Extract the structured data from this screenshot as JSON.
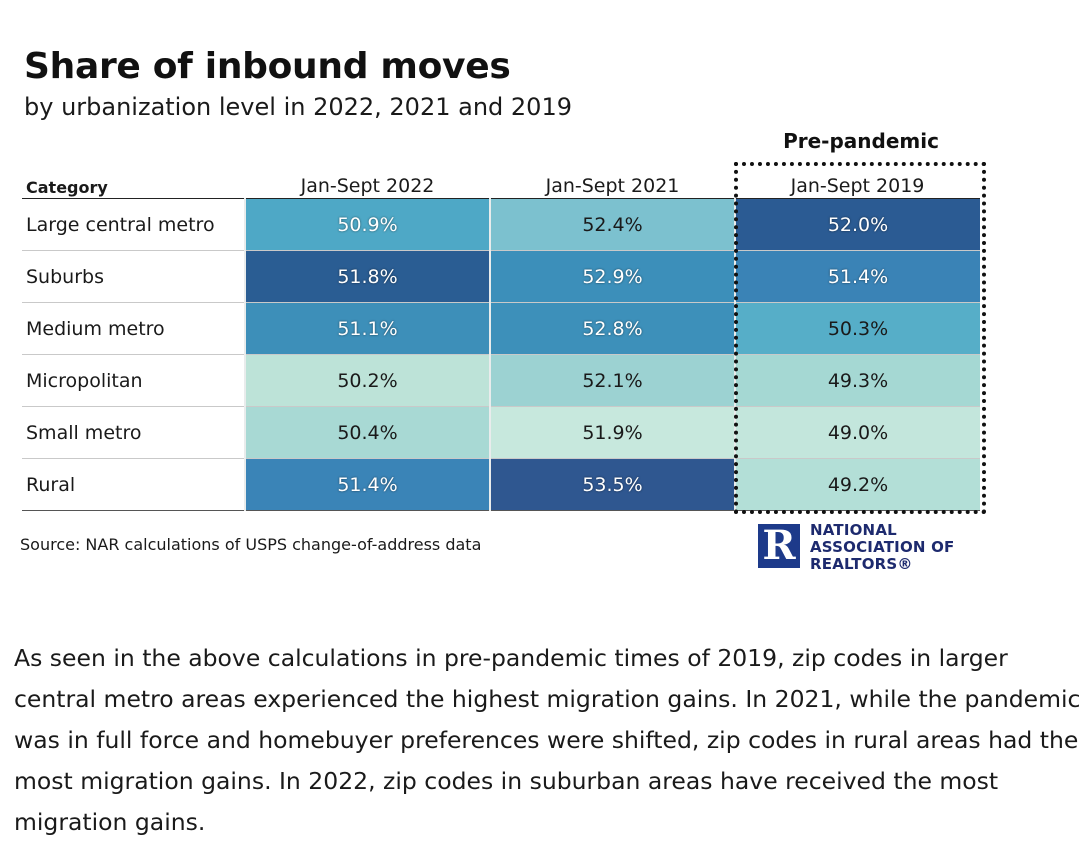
{
  "header": {
    "title": "Share of inbound moves",
    "subtitle": "by urbanization level in 2022, 2021 and 2019",
    "pre_pandemic_label": "Pre-pandemic"
  },
  "chart_data": {
    "type": "heatmap",
    "title": "Share of inbound moves",
    "subtitle": "by urbanization level in 2022, 2021 and 2019",
    "row_header": "Category",
    "columns": [
      "Jan-Sept 2022",
      "Jan-Sept 2021",
      "Jan-Sept 2019"
    ],
    "rows": [
      {
        "category": "Large central metro",
        "values": [
          "50.9%",
          "52.4%",
          "52.0%"
        ],
        "colors": [
          "#4ea8c6",
          "#7cc1cf",
          "#2b5b93"
        ]
      },
      {
        "category": "Suburbs",
        "values": [
          "51.8%",
          "52.9%",
          "51.4%"
        ],
        "colors": [
          "#2a5d93",
          "#3c8fba",
          "#3a83b6"
        ]
      },
      {
        "category": "Medium metro",
        "values": [
          "51.1%",
          "52.8%",
          "50.3%"
        ],
        "colors": [
          "#3d8fb9",
          "#3d90ba",
          "#56aec8"
        ]
      },
      {
        "category": "Micropolitan",
        "values": [
          "50.2%",
          "52.1%",
          "49.3%"
        ],
        "colors": [
          "#bde3d8",
          "#9cd2d2",
          "#a5d8d3"
        ]
      },
      {
        "category": "Small metro",
        "values": [
          "50.4%",
          "51.9%",
          "49.0%"
        ],
        "colors": [
          "#a8d9d4",
          "#c7e8dd",
          "#c3e6dc"
        ]
      },
      {
        "category": "Rural",
        "values": [
          "51.4%",
          "53.5%",
          "49.2%"
        ],
        "colors": [
          "#3a84b7",
          "#2f5790",
          "#b3dfd7"
        ]
      }
    ]
  },
  "source": "Source: NAR calculations of USPS change-of-address data",
  "logo": {
    "mark": "R",
    "lines": [
      "NATIONAL",
      "ASSOCIATION OF",
      "REALTORS®"
    ]
  },
  "body_text": "As seen in the above calculations in pre-pandemic times of 2019, zip codes in larger central metro areas experienced the highest migration gains. In 2021, while the pandemic was in full force and homebuyer preferences were shifted, zip codes in rural areas had the most migration gains. In 2022, zip codes in suburban areas have received the most migration gains."
}
